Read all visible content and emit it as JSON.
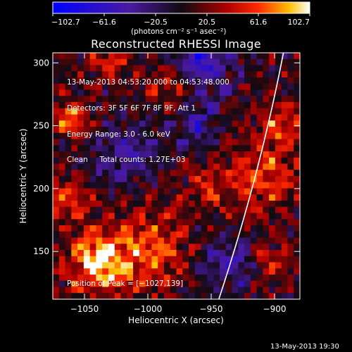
{
  "chart_data": {
    "type": "heatmap",
    "title": "Reconstructed RHESSI Image",
    "xlabel": "Heliocentric X (arcsec)",
    "ylabel": "Heliocentric Y (arcsec)",
    "xlim": [
      -1075,
      -880
    ],
    "ylim": [
      112,
      308
    ],
    "xticks": [
      -1050,
      -1000,
      -950,
      -900
    ],
    "xtick_labels": [
      "−1050",
      "−1000",
      "−950",
      "−900"
    ],
    "yticks": [
      150,
      200,
      250,
      300
    ],
    "ytick_labels": [
      "150",
      "200",
      "250",
      "300"
    ],
    "colorbar": {
      "min": -102.7,
      "max": 102.7,
      "ticks": [
        -102.7,
        -61.6,
        -20.5,
        20.5,
        61.6,
        102.7
      ],
      "tick_labels": [
        "−102.7",
        "−61.6",
        "−20.5",
        "20.5",
        "61.6",
        "102.7"
      ],
      "units_label": "(photons cm⁻² s⁻¹ asec⁻²)"
    },
    "info_lines": [
      "13-May-2013 04:53:20.000 to 04:53:48.000",
      "Detectors: 3F 5F 6F 7F 8F 9F, Att 1",
      "Energy Range: 3.0 - 6.0 keV",
      "Clean     Total counts: 1.27E+03"
    ],
    "peak_label": "Position of Peak = [−1027,139]",
    "limb_arc": {
      "x_top": -893,
      "x_bottom": -944
    },
    "grid": false
  },
  "footer_timestamp": "13-May-2013 19:30"
}
